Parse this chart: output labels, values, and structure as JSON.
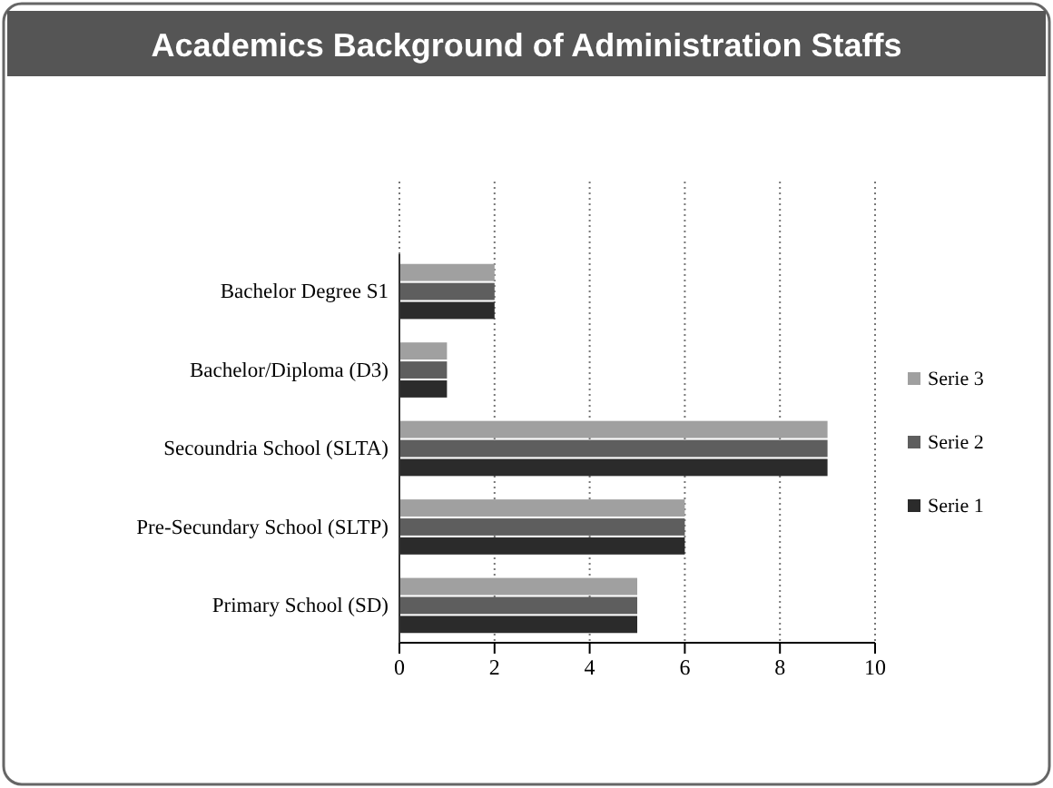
{
  "chart_data": {
    "type": "bar",
    "orientation": "horizontal",
    "title": "Academics Background of Administration Staffs",
    "categories": [
      "Bachelor Degree S1",
      "Bachelor/Diploma (D3)",
      "Secoundria School (SLTA)",
      "Pre-Secundary School (SLTP)",
      "Primary School (SD)"
    ],
    "series": [
      {
        "name": "Serie 1",
        "color": "#2b2b2b",
        "values": [
          2,
          1,
          9,
          6,
          5
        ]
      },
      {
        "name": "Serie 2",
        "color": "#5e5e5e",
        "values": [
          2,
          1,
          9,
          6,
          5
        ]
      },
      {
        "name": "Serie 3",
        "color": "#a0a0a0",
        "values": [
          2,
          1,
          9,
          6,
          5
        ]
      }
    ],
    "xlim": [
      0,
      10
    ],
    "xticks": [
      0,
      2,
      4,
      6,
      8,
      10
    ],
    "grid": "x",
    "legend": "right"
  }
}
